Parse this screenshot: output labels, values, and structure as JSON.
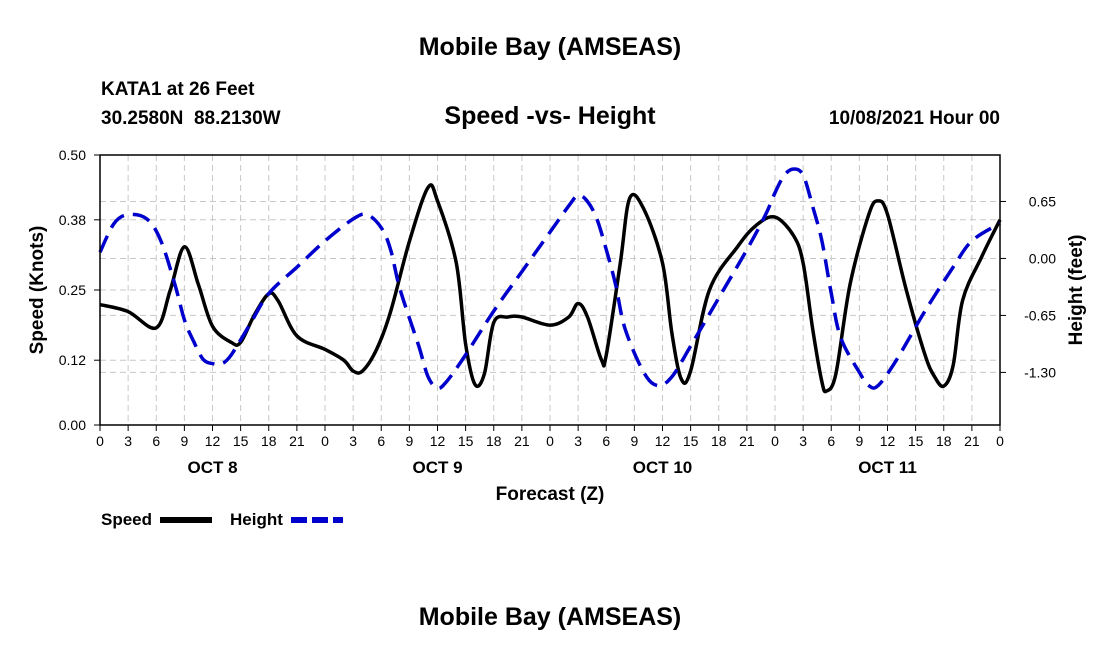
{
  "chart_data": {
    "type": "line",
    "title": "Mobile Bay (AMSEAS)",
    "footer_title": "Mobile Bay (AMSEAS)",
    "subtitle": "Speed -vs- Height",
    "station": "KATA1 at 26 Feet",
    "coords": "30.2580N  88.2130W",
    "issued": "10/08/2021 Hour 00",
    "xlabel": "Forecast (Z)",
    "ylabel_left": "Speed (Knots)",
    "ylabel_right": "Height (feet)",
    "x_ticks": [
      0,
      3,
      6,
      9,
      12,
      15,
      18,
      21,
      24,
      27,
      30,
      33,
      36,
      39,
      42,
      45,
      48,
      51,
      54,
      57,
      60,
      63,
      66,
      69,
      72,
      75,
      78,
      81,
      84,
      87,
      90,
      93,
      96
    ],
    "x_tick_labels": [
      "0",
      "3",
      "6",
      "9",
      "12",
      "15",
      "18",
      "21",
      "0",
      "3",
      "6",
      "9",
      "12",
      "15",
      "18",
      "21",
      "0",
      "3",
      "6",
      "9",
      "12",
      "15",
      "18",
      "21",
      "0",
      "3",
      "6",
      "9",
      "12",
      "15",
      "18",
      "21",
      "0"
    ],
    "day_labels": [
      {
        "x": 12,
        "label": "OCT 8"
      },
      {
        "x": 36,
        "label": "OCT 9"
      },
      {
        "x": 60,
        "label": "OCT 10"
      },
      {
        "x": 84,
        "label": "OCT 11"
      }
    ],
    "xlim": [
      0,
      96
    ],
    "ylim_left": [
      0,
      0.5
    ],
    "ylim_right": [
      -1.9,
      1.18
    ],
    "y_ticks_left": [
      0.0,
      0.12,
      0.25,
      0.38,
      0.5
    ],
    "y_tick_labels_left": [
      "0.00",
      "0.12",
      "0.25",
      "0.38",
      "0.50"
    ],
    "y_ticks_right": [
      0.65,
      0.0,
      -0.65,
      -1.3
    ],
    "y_tick_labels_right": [
      "0.65",
      "0.00",
      "-0.65",
      "-1.30"
    ],
    "grid": true,
    "legend": [
      {
        "label": "Speed",
        "color": "#000000",
        "style": "solid"
      },
      {
        "label": "Height",
        "color": "#0000cc",
        "style": "dashed"
      }
    ],
    "series": [
      {
        "name": "Speed",
        "axis": "left",
        "color": "#000000",
        "points": [
          [
            0,
            0.223
          ],
          [
            3,
            0.21
          ],
          [
            6,
            0.18
          ],
          [
            7.5,
            0.25
          ],
          [
            9,
            0.33
          ],
          [
            10.5,
            0.26
          ],
          [
            12,
            0.183
          ],
          [
            14,
            0.153
          ],
          [
            15,
            0.153
          ],
          [
            16.5,
            0.205
          ],
          [
            18,
            0.243
          ],
          [
            19,
            0.23
          ],
          [
            21,
            0.165
          ],
          [
            24,
            0.14
          ],
          [
            26,
            0.12
          ],
          [
            27,
            0.1
          ],
          [
            28,
            0.1
          ],
          [
            29.5,
            0.14
          ],
          [
            31,
            0.21
          ],
          [
            33,
            0.34
          ],
          [
            35,
            0.44
          ],
          [
            36,
            0.415
          ],
          [
            38,
            0.3
          ],
          [
            39,
            0.15
          ],
          [
            40,
            0.075
          ],
          [
            41,
            0.095
          ],
          [
            42,
            0.19
          ],
          [
            43.5,
            0.2
          ],
          [
            45,
            0.2
          ],
          [
            48,
            0.185
          ],
          [
            50,
            0.2
          ],
          [
            51,
            0.225
          ],
          [
            52,
            0.2
          ],
          [
            53.5,
            0.12
          ],
          [
            54,
            0.13
          ],
          [
            55.5,
            0.3
          ],
          [
            56.5,
            0.42
          ],
          [
            58,
            0.4
          ],
          [
            60,
            0.3
          ],
          [
            61,
            0.17
          ],
          [
            62,
            0.085
          ],
          [
            63,
            0.1
          ],
          [
            65,
            0.25
          ],
          [
            68,
            0.33
          ],
          [
            70,
            0.37
          ],
          [
            72,
            0.385
          ],
          [
            74,
            0.35
          ],
          [
            75,
            0.3
          ],
          [
            76,
            0.18
          ],
          [
            77,
            0.08
          ],
          [
            77.5,
            0.063
          ],
          [
            78.5,
            0.095
          ],
          [
            80,
            0.26
          ],
          [
            82,
            0.39
          ],
          [
            83,
            0.415
          ],
          [
            84,
            0.39
          ],
          [
            86,
            0.25
          ],
          [
            88,
            0.13
          ],
          [
            89,
            0.09
          ],
          [
            90,
            0.072
          ],
          [
            91,
            0.11
          ],
          [
            92,
            0.23
          ],
          [
            94,
            0.31
          ],
          [
            96,
            0.38
          ]
        ]
      },
      {
        "name": "Height",
        "axis": "right",
        "color": "#0000cc",
        "points": [
          [
            0,
            0.07
          ],
          [
            1.5,
            0.4
          ],
          [
            3,
            0.5
          ],
          [
            5,
            0.45
          ],
          [
            6.5,
            0.2
          ],
          [
            8,
            -0.3
          ],
          [
            9,
            -0.7
          ],
          [
            10,
            -0.95
          ],
          [
            11,
            -1.15
          ],
          [
            12,
            -1.2
          ],
          [
            13,
            -1.2
          ],
          [
            14,
            -1.1
          ],
          [
            16,
            -0.75
          ],
          [
            18,
            -0.4
          ],
          [
            21,
            -0.1
          ],
          [
            24,
            0.2
          ],
          [
            27,
            0.45
          ],
          [
            28.5,
            0.5
          ],
          [
            30,
            0.35
          ],
          [
            31,
            0.1
          ],
          [
            32,
            -0.35
          ],
          [
            34,
            -1.0
          ],
          [
            35,
            -1.35
          ],
          [
            36,
            -1.48
          ],
          [
            37,
            -1.4
          ],
          [
            39,
            -1.1
          ],
          [
            42,
            -0.6
          ],
          [
            45,
            -0.15
          ],
          [
            48,
            0.3
          ],
          [
            50,
            0.6
          ],
          [
            51,
            0.72
          ],
          [
            52,
            0.65
          ],
          [
            53,
            0.45
          ],
          [
            54,
            0.1
          ],
          [
            55,
            -0.3
          ],
          [
            56,
            -0.8
          ],
          [
            58,
            -1.3
          ],
          [
            59.5,
            -1.45
          ],
          [
            61,
            -1.35
          ],
          [
            63,
            -1.0
          ],
          [
            66,
            -0.45
          ],
          [
            69,
            0.1
          ],
          [
            71,
            0.5
          ],
          [
            72,
            0.75
          ],
          [
            73,
            0.95
          ],
          [
            74,
            1.02
          ],
          [
            75,
            0.95
          ],
          [
            76,
            0.6
          ],
          [
            77,
            0.2
          ],
          [
            78,
            -0.4
          ],
          [
            79,
            -0.9
          ],
          [
            81,
            -1.3
          ],
          [
            82,
            -1.45
          ],
          [
            83,
            -1.45
          ],
          [
            85,
            -1.15
          ],
          [
            88,
            -0.6
          ],
          [
            91,
            -0.1
          ],
          [
            93,
            0.2
          ],
          [
            96,
            0.4
          ]
        ]
      }
    ]
  }
}
